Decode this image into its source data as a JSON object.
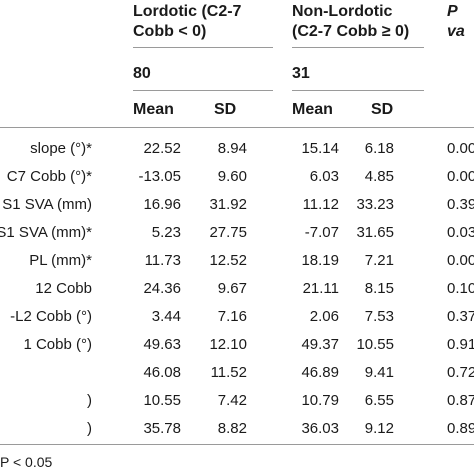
{
  "header": {
    "group1": {
      "line1": "Lordotic (C2-7",
      "line2": "Cobb < 0)",
      "n": "80"
    },
    "group2": {
      "line1": "Non-Lordotic",
      "line2": "(C2-7 Cobb ≥ 0)",
      "n": "31"
    },
    "pvalue_label": "P va",
    "mean_label": "Mean",
    "sd_label": "SD"
  },
  "rows": [
    {
      "label": "slope (°)*",
      "m1": "22.52",
      "sd1": "8.94",
      "m2": "15.14",
      "sd2": "6.18",
      "p": "0.00"
    },
    {
      "label": "C7 Cobb (°)*",
      "m1": "-13.05",
      "sd1": "9.60",
      "m2": "6.03",
      "sd2": "4.85",
      "p": "0.00"
    },
    {
      "label": "S1 SVA (mm)",
      "m1": "16.96",
      "sd1": "31.92",
      "m2": "11.12",
      "sd2": "33.23",
      "p": "0.39"
    },
    {
      "label": "S1 SVA (mm)*",
      "m1": "5.23",
      "sd1": "27.75",
      "m2": "-7.07",
      "sd2": "31.65",
      "p": "0.03"
    },
    {
      "label": "PL (mm)*",
      "m1": "11.73",
      "sd1": "12.52",
      "m2": "18.19",
      "sd2": "7.21",
      "p": "0.00"
    },
    {
      "label": "12 Cobb",
      "m1": "24.36",
      "sd1": "9.67",
      "m2": "21.11",
      "sd2": "8.15",
      "p": "0.10"
    },
    {
      "label": "-L2 Cobb (°)",
      "m1": "3.44",
      "sd1": "7.16",
      "m2": "2.06",
      "sd2": "7.53",
      "p": "0.37"
    },
    {
      "label": "1 Cobb (°)",
      "m1": "49.63",
      "sd1": "12.10",
      "m2": "49.37",
      "sd2": "10.55",
      "p": "0.91"
    },
    {
      "label": "",
      "m1": "46.08",
      "sd1": "11.52",
      "m2": "46.89",
      "sd2": "9.41",
      "p": "0.72"
    },
    {
      "label": ")",
      "m1": "10.55",
      "sd1": "7.42",
      "m2": "10.79",
      "sd2": "6.55",
      "p": "0.87"
    },
    {
      "label": ")",
      "m1": "35.78",
      "sd1": "8.82",
      "m2": "36.03",
      "sd2": "9.12",
      "p": "0.89"
    }
  ],
  "footnote": "P < 0.05"
}
